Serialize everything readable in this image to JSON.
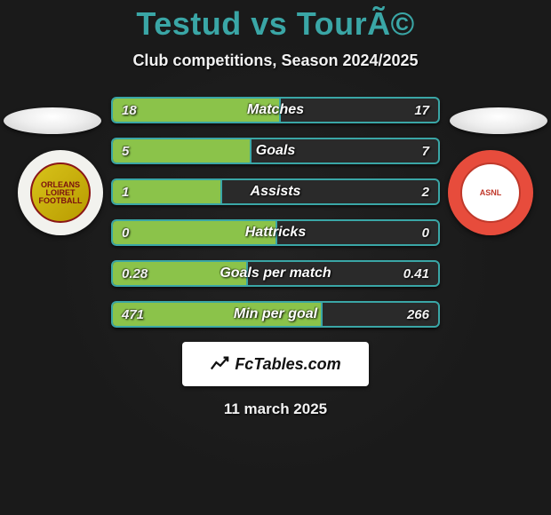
{
  "header": {
    "title": "Testud vs TourÃ©",
    "title_color": "#3aa6a6",
    "subtitle": "Club competitions, Season 2024/2025"
  },
  "teams": {
    "left": {
      "badge_ring_color": "#f2f2ee",
      "badge_core_bg": "linear-gradient(135deg,#d8c31a 0%, #b89b00 100%)",
      "badge_text_color": "#7a1010",
      "line1": "ORLEANS",
      "line2": "LOIRET",
      "line3": "FOOTBALL"
    },
    "right": {
      "badge_ring_color": "#e74c3c",
      "badge_core_bg": "#ffffff",
      "badge_text_color": "#c0392b",
      "line1": "ASNL",
      "line2": "",
      "line3": ""
    }
  },
  "bars": {
    "border_color": "#3aa6a6",
    "fill_left_color": "#8bc34a",
    "track_color": "#2a2a2a",
    "rows": [
      {
        "name": "Matches",
        "left": "18",
        "right": "17",
        "left_pct": 51
      },
      {
        "name": "Goals",
        "left": "5",
        "right": "7",
        "left_pct": 42
      },
      {
        "name": "Assists",
        "left": "1",
        "right": "2",
        "left_pct": 33
      },
      {
        "name": "Hattricks",
        "left": "0",
        "right": "0",
        "left_pct": 50
      },
      {
        "name": "Goals per match",
        "left": "0.28",
        "right": "0.41",
        "left_pct": 41
      },
      {
        "name": "Min per goal",
        "left": "471",
        "right": "266",
        "left_pct": 64
      }
    ]
  },
  "footer": {
    "brand": "FcTables.com",
    "date": "11 march 2025"
  },
  "colors": {
    "background": "#1a1a1a",
    "text": "#f2f2f2"
  }
}
